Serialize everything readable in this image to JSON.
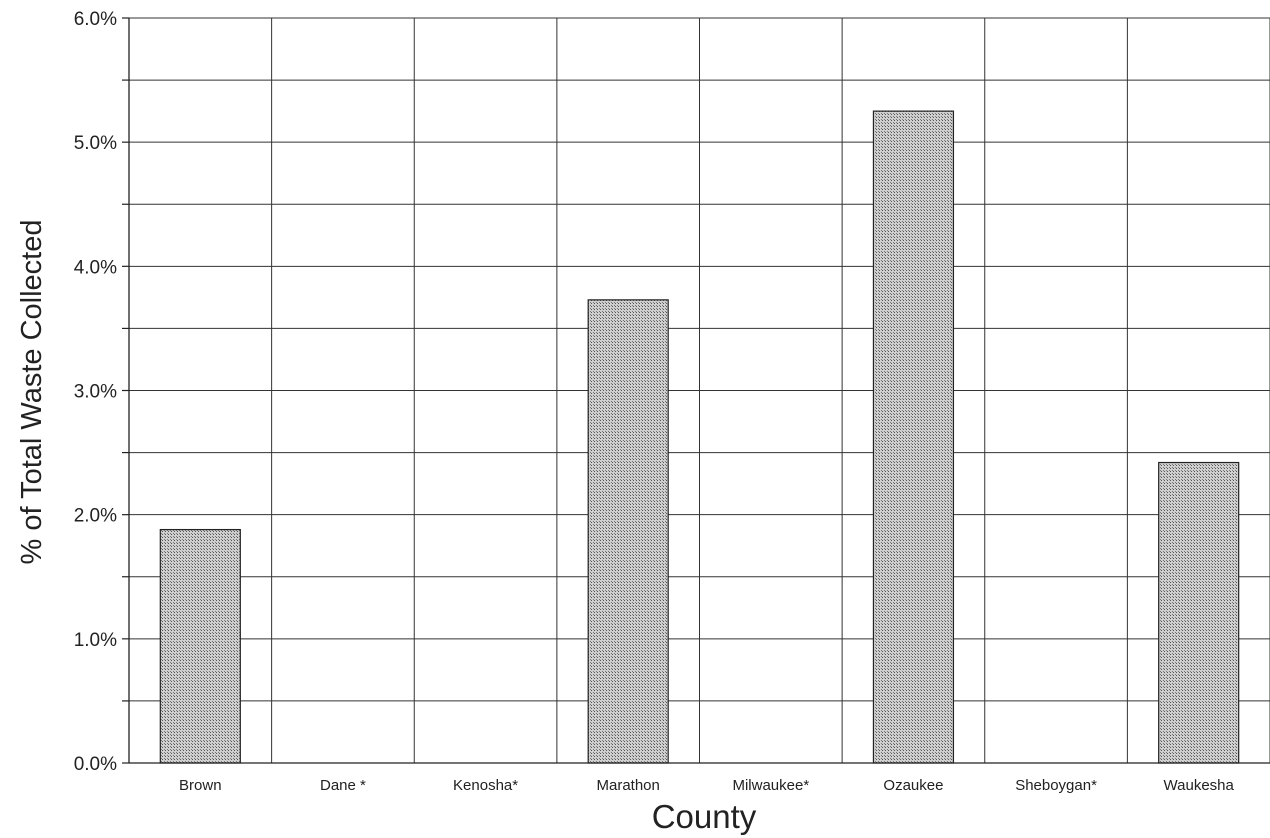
{
  "chart_data": {
    "type": "bar",
    "categories": [
      "Brown",
      "Dane *",
      "Kenosha*",
      "Marathon",
      "Milwaukee*",
      "Ozaukee",
      "Sheboygan*",
      "Waukesha"
    ],
    "values": [
      1.88,
      0,
      0,
      3.73,
      0,
      5.25,
      0,
      2.42
    ],
    "xlabel": "County",
    "ylabel": "% of Total Waste Collected",
    "ylim": [
      0,
      6
    ],
    "yticks": [
      0,
      1,
      2,
      3,
      4,
      5,
      6
    ],
    "ytick_labels": [
      "0.0%",
      "1.0%",
      "2.0%",
      "3.0%",
      "4.0%",
      "5.0%",
      "6.0%"
    ],
    "grid": true,
    "bar_color": "#b8b8b8",
    "grid_color": "#333333"
  }
}
